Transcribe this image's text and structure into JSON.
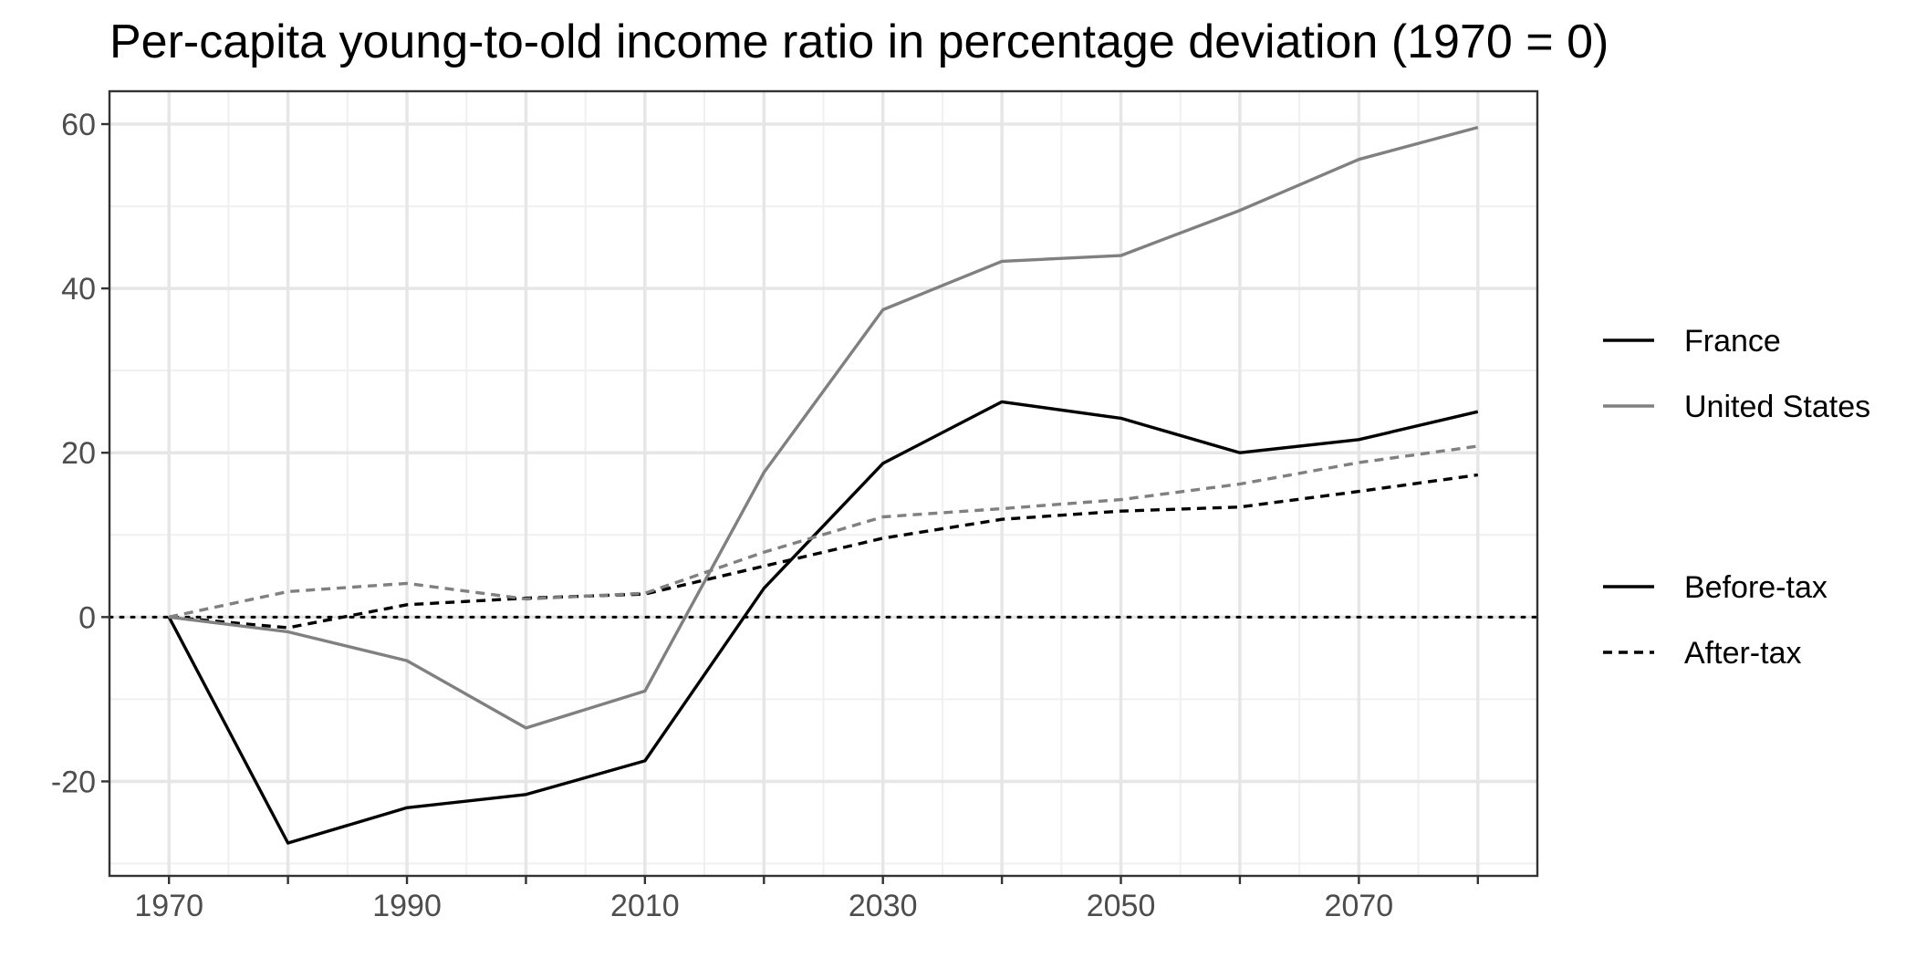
{
  "chart_data": {
    "type": "line",
    "title": "Per-capita young-to-old income ratio in percentage deviation (1970 = 0)",
    "xlabel": "",
    "ylabel": "",
    "x": [
      1970,
      1980,
      1990,
      2000,
      2010,
      2020,
      2030,
      2040,
      2050,
      2060,
      2070,
      2080
    ],
    "xlim": [
      1965,
      2085
    ],
    "ylim": [
      -31.5,
      64
    ],
    "x_ticks": [
      1970,
      1990,
      2010,
      2030,
      2050,
      2070
    ],
    "x_ticks_unlabeled": [
      1980,
      2000,
      2020,
      2040,
      2060,
      2080
    ],
    "x_tick_labels": [
      "1970",
      "1990",
      "2010",
      "2030",
      "2050",
      "2070"
    ],
    "x_minor_grid": [
      1975,
      1985,
      1995,
      2005,
      2015,
      2025,
      2035,
      2045,
      2055,
      2065,
      2075
    ],
    "y_ticks": [
      -20,
      0,
      20,
      40,
      60
    ],
    "y_tick_labels": [
      "-20",
      "0",
      "20",
      "40",
      "60"
    ],
    "y_minor_grid": [
      -30,
      -10,
      10,
      30,
      50
    ],
    "grid": true,
    "reference_line": {
      "y": 0,
      "style": "dotted",
      "color": "#000000"
    },
    "series": [
      {
        "country": "France",
        "measure": "Before-tax",
        "color": "#000000",
        "dash": "solid",
        "values": [
          0,
          -27.5,
          -23.2,
          -21.6,
          -17.5,
          3.5,
          18.7,
          26.2,
          24.2,
          20.0,
          21.6,
          25.0
        ]
      },
      {
        "country": "France",
        "measure": "After-tax",
        "color": "#000000",
        "dash": "dashed",
        "values": [
          0,
          -1.3,
          1.5,
          2.3,
          2.8,
          6.2,
          9.6,
          11.9,
          12.9,
          13.4,
          15.3,
          17.3
        ]
      },
      {
        "country": "United States",
        "measure": "Before-tax",
        "color": "#808080",
        "dash": "solid",
        "values": [
          0,
          -1.8,
          -5.3,
          -13.5,
          -9.0,
          17.6,
          37.4,
          43.3,
          44.0,
          49.5,
          55.7,
          59.6
        ]
      },
      {
        "country": "United States",
        "measure": "After-tax",
        "color": "#808080",
        "dash": "dashed",
        "values": [
          0,
          3.1,
          4.1,
          2.2,
          2.9,
          7.9,
          12.2,
          13.2,
          14.3,
          16.2,
          18.8,
          20.8
        ]
      }
    ],
    "legend": {
      "placement": "right",
      "groups": [
        {
          "entries": [
            {
              "label": "France",
              "color": "#000000",
              "dash": "solid"
            },
            {
              "label": "United States",
              "color": "#808080",
              "dash": "solid"
            }
          ]
        },
        {
          "entries": [
            {
              "label": "Before-tax",
              "color": "#000000",
              "dash": "solid"
            },
            {
              "label": "After-tax",
              "color": "#000000",
              "dash": "dashed"
            }
          ]
        }
      ]
    }
  }
}
